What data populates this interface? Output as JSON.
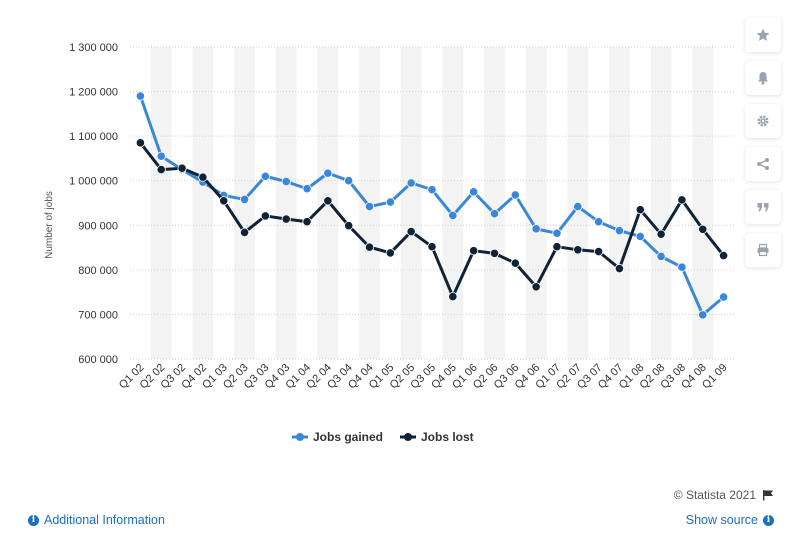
{
  "chart_data": {
    "type": "line",
    "categories": [
      "Q1 02",
      "Q2 02",
      "Q3 02",
      "Q4 02",
      "Q1 03",
      "Q2 03",
      "Q3 03",
      "Q4 03",
      "Q1 04",
      "Q2 04",
      "Q3 04",
      "Q4 04",
      "Q1 05",
      "Q2 05",
      "Q3 05",
      "Q4 05",
      "Q1 06",
      "Q2 06",
      "Q3 06",
      "Q4 06",
      "Q1 07",
      "Q2 07",
      "Q3 07",
      "Q4 07",
      "Q1 08",
      "Q2 08",
      "Q3 08",
      "Q4 08",
      "Q1 09"
    ],
    "series": [
      {
        "name": "Jobs gained",
        "color": "#3a87d9",
        "values": [
          1190000,
          1055000,
          1025000,
          997000,
          967000,
          958000,
          1010000,
          998000,
          982000,
          1017000,
          1000000,
          942000,
          952000,
          995000,
          980000,
          922000,
          975000,
          926000,
          968000,
          892000,
          882000,
          942000,
          908000,
          888000,
          875000,
          830000,
          806000,
          699000,
          739000
        ]
      },
      {
        "name": "Jobs lost",
        "color": "#0f2236",
        "values": [
          1085000,
          1025000,
          1028000,
          1008000,
          955000,
          884000,
          921000,
          914000,
          908000,
          955000,
          899000,
          851000,
          838000,
          886000,
          852000,
          740000,
          843000,
          837000,
          815000,
          762000,
          852000,
          845000,
          841000,
          803000,
          935000,
          880000,
          957000,
          891000,
          832000
        ]
      }
    ],
    "ylabel": "Number of jobs",
    "xlabel": "",
    "ylim": [
      600000,
      1300000
    ],
    "yticks": [
      "600 000",
      "700 000",
      "800 000",
      "900 000",
      "1 000 000",
      "1 100 000",
      "1 200 000",
      "1 300 000"
    ],
    "ytick_values": [
      600000,
      700000,
      800000,
      900000,
      1000000,
      1100000,
      1200000,
      1300000
    ],
    "grid": true,
    "legend_placement": "bottom-center"
  },
  "toolbar": {
    "buttons": [
      {
        "icon": "star-icon"
      },
      {
        "icon": "bell-icon"
      },
      {
        "icon": "gear-icon"
      },
      {
        "icon": "share-icon"
      },
      {
        "icon": "quote-icon"
      },
      {
        "icon": "print-icon"
      }
    ]
  },
  "footer": {
    "credit": "© Statista 2021",
    "additional_info": "Additional Information",
    "show_source": "Show source"
  },
  "colors": {
    "accent_link": "#1a6fc4",
    "band": "#f3f3f3",
    "grid": "#cfcfcf"
  }
}
